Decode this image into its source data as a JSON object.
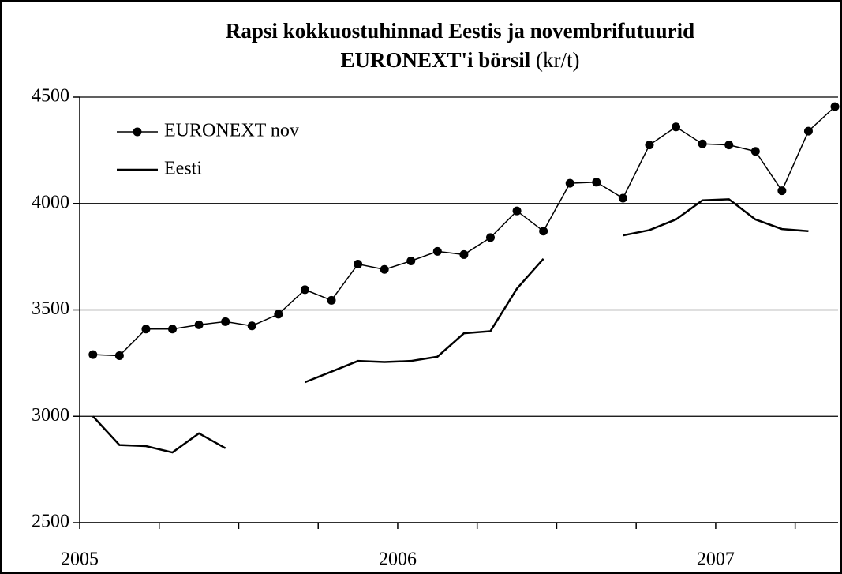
{
  "chart_data": {
    "type": "line",
    "title": [
      "Rapsi kokkuostuhinnad Eestis ja novembrifutuurid",
      "EURONEXT'i börsil"
    ],
    "unit": "(kr/t)",
    "categories": [
      "2005",
      null,
      null,
      null,
      null,
      null,
      null,
      null,
      null,
      null,
      null,
      null,
      "2006",
      null,
      null,
      null,
      null,
      null,
      null,
      null,
      null,
      null,
      null,
      null,
      "2007",
      null,
      null,
      null,
      null
    ],
    "series": [
      {
        "name": "EURONEXT nov",
        "color": "#000000",
        "marker": true,
        "values": [
          3290,
          3285,
          3410,
          3410,
          3430,
          3445,
          3425,
          3480,
          3595,
          3545,
          3715,
          3690,
          3730,
          3775,
          3760,
          3840,
          3965,
          3870,
          4095,
          4100,
          4025,
          4275,
          4360,
          4280,
          4275,
          4245,
          4060,
          4340,
          4455
        ]
      },
      {
        "name": "Eesti",
        "color": "#000000",
        "marker": false,
        "values": [
          3000,
          2865,
          2860,
          2830,
          2920,
          2850,
          null,
          null,
          3160,
          3210,
          3260,
          3255,
          3260,
          3280,
          3390,
          3400,
          3600,
          3740,
          null,
          null,
          3850,
          3875,
          3925,
          4015,
          4020,
          3925,
          3880,
          3870,
          null
        ]
      }
    ],
    "ylim": [
      2500,
      4500
    ],
    "yticks": [
      2500,
      3000,
      3500,
      4000,
      4500
    ],
    "grid": true,
    "legend": "top-left"
  }
}
